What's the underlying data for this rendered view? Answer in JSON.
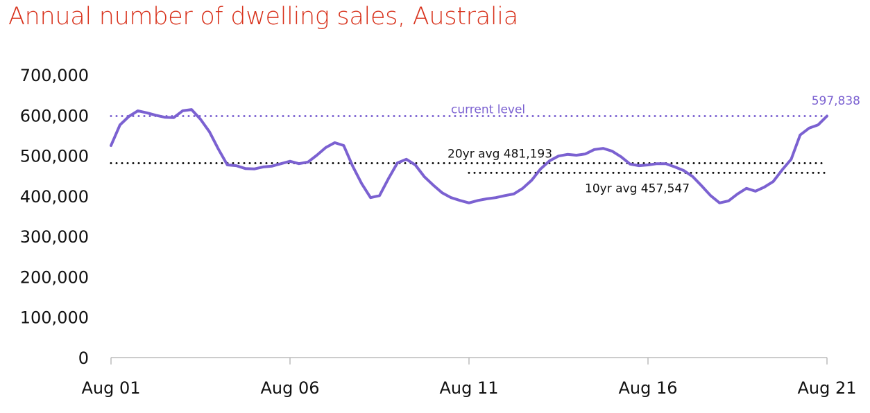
{
  "chart_data": {
    "type": "line",
    "title": "Annual number of dwelling sales, Australia",
    "xlabel": "",
    "ylabel": "",
    "ylim": [
      0,
      700000
    ],
    "yticks": [
      "0",
      "100,000",
      "200,000",
      "300,000",
      "400,000",
      "500,000",
      "600,000",
      "700,000"
    ],
    "xticks": [
      "Aug 01",
      "Aug 06",
      "Aug 11",
      "Aug 16",
      "Aug 21"
    ],
    "grid": false,
    "line_color": "#7b61d1",
    "title_color": "#d8321c",
    "x_start": "Aug 01",
    "x_end": "Aug 21",
    "x_frequency": "quarterly",
    "values": [
      525000,
      576000,
      597000,
      611000,
      606000,
      600000,
      595000,
      594000,
      611000,
      614000,
      590000,
      559000,
      516000,
      477000,
      475000,
      468000,
      467000,
      472000,
      474000,
      480000,
      486000,
      480000,
      484000,
      501000,
      520000,
      532000,
      525000,
      474000,
      431000,
      396000,
      401000,
      443000,
      482000,
      491000,
      477000,
      448000,
      427000,
      408000,
      396000,
      389000,
      383000,
      389000,
      393000,
      396000,
      401000,
      405000,
      419000,
      439000,
      467000,
      487000,
      499000,
      503000,
      501000,
      504000,
      515000,
      518000,
      511000,
      497000,
      479000,
      475000,
      477000,
      480000,
      480000,
      472000,
      463000,
      448000,
      425000,
      401000,
      383000,
      388000,
      405000,
      419000,
      412000,
      422000,
      436000,
      465000,
      491000,
      551000,
      568000,
      576000,
      597838
    ],
    "reference_lines": [
      {
        "label": "current level",
        "value": 597838,
        "color": "#7b61d1",
        "from": "Aug 01"
      },
      {
        "label": "20yr avg 481,193",
        "value": 481193,
        "color": "#111111",
        "from": "Aug 01"
      },
      {
        "label": "10yr avg 457,547",
        "value": 457547,
        "color": "#111111",
        "from": "Aug 11"
      }
    ],
    "end_label": "597,838"
  }
}
